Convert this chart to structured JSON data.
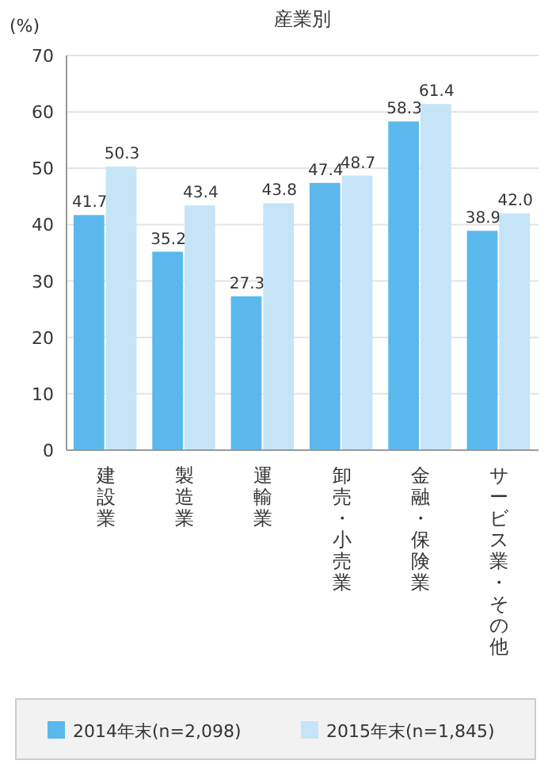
{
  "chart_data": {
    "type": "bar",
    "title": "産業別",
    "ylabel": "(%)",
    "categories": [
      "建設業",
      "製造業",
      "運輸業",
      "卸売・小売業",
      "金融・保険業",
      "サービス業・その他"
    ],
    "series": [
      {
        "name": "2014年末(n=2,098)",
        "color": "#5bb8ec",
        "values": [
          41.7,
          35.2,
          27.3,
          47.4,
          58.3,
          38.9
        ],
        "value_labels": [
          "41.7",
          "35.2",
          "27.3",
          "47.4",
          "58.3",
          "38.9"
        ]
      },
      {
        "name": "2015年末(n=1,845)",
        "color": "#c6e4f7",
        "values": [
          50.3,
          43.4,
          43.8,
          48.7,
          61.4,
          42.0
        ],
        "value_labels": [
          "50.3",
          "43.4",
          "43.8",
          "48.7",
          "61.4",
          "42.0"
        ]
      }
    ],
    "ylim": [
      0,
      70
    ],
    "yticks": [
      0,
      10,
      20,
      30,
      40,
      50,
      60,
      70
    ],
    "grid": "y",
    "legend": "bottom"
  }
}
